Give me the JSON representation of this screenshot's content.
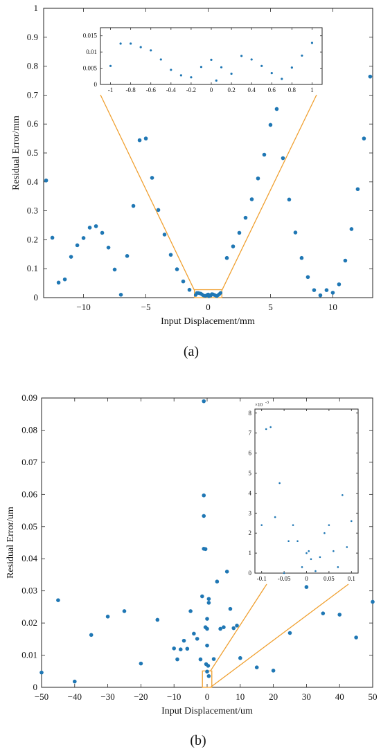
{
  "marker_color": "#1f77b4",
  "zoom_color": "#f0a030",
  "chart_data": [
    {
      "type": "scatter",
      "panel_label": "(a)",
      "xlabel": "Input Displacement/mm",
      "ylabel": "Residual Error/mm",
      "xlim": [
        -13.2,
        13.2
      ],
      "ylim": [
        0,
        1
      ],
      "xticks": [
        -10,
        -5,
        0,
        5,
        10
      ],
      "xtick_labels": [
        "−10",
        "−5",
        "0",
        "5",
        "10"
      ],
      "yticks": [
        0,
        0.1,
        0.2,
        0.3,
        0.4,
        0.5,
        0.6,
        0.7,
        0.8,
        0.9,
        1
      ],
      "ytick_labels": [
        "0",
        "0.1",
        "0.2",
        "0.3",
        "0.4",
        "0.5",
        "0.6",
        "0.7",
        "0.8",
        "0.9",
        "1"
      ],
      "zoom_box": {
        "x": [
          -1.1,
          1.1
        ],
        "y": [
          0,
          0.025
        ]
      },
      "points": [
        [
          -13,
          0.405
        ],
        [
          -12.5,
          0.207
        ],
        [
          -12,
          0.052
        ],
        [
          -11.5,
          0.063
        ],
        [
          -11,
          0.141
        ],
        [
          -10.5,
          0.181
        ],
        [
          -10,
          0.206
        ],
        [
          -9.5,
          0.242
        ],
        [
          -9,
          0.247
        ],
        [
          -8.5,
          0.224
        ],
        [
          -8,
          0.173
        ],
        [
          -7.5,
          0.097
        ],
        [
          -7,
          0.01
        ],
        [
          -6.5,
          0.144
        ],
        [
          -6,
          0.317
        ],
        [
          -5.5,
          0.544
        ],
        [
          -5,
          0.55
        ],
        [
          -4.5,
          0.414
        ],
        [
          -4,
          0.303
        ],
        [
          -3.5,
          0.218
        ],
        [
          -3,
          0.148
        ],
        [
          -2.5,
          0.098
        ],
        [
          -2,
          0.056
        ],
        [
          -1.5,
          0.027
        ],
        [
          1.5,
          0.137
        ],
        [
          2,
          0.177
        ],
        [
          2.5,
          0.224
        ],
        [
          3,
          0.276
        ],
        [
          3.5,
          0.34
        ],
        [
          4,
          0.412
        ],
        [
          4.5,
          0.494
        ],
        [
          5,
          0.597
        ],
        [
          5.5,
          0.652
        ],
        [
          6,
          0.482
        ],
        [
          6.5,
          0.339
        ],
        [
          7,
          0.225
        ],
        [
          7.5,
          0.137
        ],
        [
          8,
          0.071
        ],
        [
          8.5,
          0.026
        ],
        [
          9,
          0.008
        ],
        [
          9.5,
          0.026
        ],
        [
          10,
          0.017
        ],
        [
          10.5,
          0.046
        ],
        [
          11,
          0.128
        ],
        [
          11.5,
          0.237
        ],
        [
          12,
          0.375
        ],
        [
          12.5,
          0.55
        ],
        [
          13,
          0.764
        ]
      ],
      "inset": {
        "xlim": [
          -1.1,
          1.1
        ],
        "ylim": [
          0,
          0.0175
        ],
        "xticks": [
          -1,
          -0.8,
          -0.6,
          -0.4,
          -0.2,
          0,
          0.2,
          0.4,
          0.6,
          0.8,
          1
        ],
        "xtick_labels": [
          "-1",
          "-0.8",
          "-0.6",
          "-0.4",
          "-0.2",
          "0",
          "0.2",
          "0.4",
          "0.6",
          "0.8",
          "1"
        ],
        "yticks": [
          0,
          0.005,
          0.01,
          0.015
        ],
        "ytick_labels": [
          "0",
          "0.005",
          "0.01",
          "0.015"
        ],
        "points": [
          [
            -1,
            0.0057
          ],
          [
            -0.9,
            0.0126
          ],
          [
            -0.8,
            0.0126
          ],
          [
            -0.7,
            0.0115
          ],
          [
            -0.6,
            0.0105
          ],
          [
            -0.5,
            0.0077
          ],
          [
            -0.4,
            0.0045
          ],
          [
            -0.3,
            0.0028
          ],
          [
            -0.2,
            0.0022
          ],
          [
            -0.1,
            0.0054
          ],
          [
            0,
            0.0076
          ],
          [
            0.05,
            0.0012
          ],
          [
            0.1,
            0.0053
          ],
          [
            0.2,
            0.0033
          ],
          [
            0.3,
            0.0088
          ],
          [
            0.4,
            0.0077
          ],
          [
            0.5,
            0.0057
          ],
          [
            0.6,
            0.0035
          ],
          [
            0.7,
            0.0017
          ],
          [
            0.8,
            0.0052
          ],
          [
            0.9,
            0.0089
          ],
          [
            1,
            0.0128
          ]
        ]
      }
    },
    {
      "type": "scatter",
      "panel_label": "(b)",
      "xlabel": "Input Displacement/um",
      "ylabel": "Residual Error/um",
      "xlim": [
        -50,
        50
      ],
      "ylim": [
        0,
        0.09
      ],
      "xticks": [
        -50,
        -40,
        -30,
        -20,
        -10,
        0,
        10,
        20,
        30,
        40,
        50
      ],
      "xtick_labels": [
        "−50",
        "−40",
        "−30",
        "−20",
        "−10",
        "0",
        "10",
        "20",
        "30",
        "40",
        "50"
      ],
      "yticks": [
        0,
        0.01,
        0.02,
        0.03,
        0.04,
        0.05,
        0.06,
        0.07,
        0.08,
        0.09
      ],
      "ytick_labels": [
        "0",
        "0.01",
        "0.02",
        "0.03",
        "0.04",
        "0.05",
        "0.06",
        "0.07",
        "0.08",
        "0.09"
      ],
      "zoom_box": {
        "x": [
          -1,
          1
        ],
        "y": [
          0,
          0.0038
        ]
      },
      "points": [
        [
          -50,
          0.0046
        ],
        [
          -45,
          0.0271
        ],
        [
          -40,
          0.0018
        ],
        [
          -35,
          0.0163
        ],
        [
          -30,
          0.022
        ],
        [
          -25,
          0.0237
        ],
        [
          -20,
          0.0074
        ],
        [
          -15,
          0.021
        ],
        [
          -10,
          0.0121
        ],
        [
          -9,
          0.0087
        ],
        [
          -8,
          0.0118
        ],
        [
          -7,
          0.0145
        ],
        [
          -6,
          0.012
        ],
        [
          -5,
          0.0237
        ],
        [
          -4,
          0.0167
        ],
        [
          -3,
          0.0151
        ],
        [
          -2,
          0.0087
        ],
        [
          -1.5,
          0.0283
        ],
        [
          -1,
          0.089
        ],
        [
          -1,
          0.0597
        ],
        [
          -1,
          0.0533
        ],
        [
          -1,
          0.0431
        ],
        [
          -0.5,
          0.043
        ],
        [
          -0.5,
          0.0187
        ],
        [
          0,
          0.0213
        ],
        [
          0,
          0.0182
        ],
        [
          0,
          0.013
        ],
        [
          0.5,
          0.0263
        ],
        [
          0.5,
          0.0275
        ],
        [
          -0.3,
          0.0072
        ],
        [
          0.3,
          0.0067
        ],
        [
          0,
          0.0049
        ],
        [
          0.5,
          0.0035
        ],
        [
          2,
          0.0088
        ],
        [
          3,
          0.0329
        ],
        [
          4,
          0.0182
        ],
        [
          5,
          0.0187
        ],
        [
          6,
          0.036
        ],
        [
          7,
          0.0244
        ],
        [
          8,
          0.0184
        ],
        [
          9,
          0.0192
        ],
        [
          10,
          0.0091
        ],
        [
          15,
          0.0062
        ],
        [
          20,
          0.0052
        ],
        [
          25,
          0.0169
        ],
        [
          30,
          0.0312
        ],
        [
          35,
          0.023
        ],
        [
          40,
          0.0226
        ],
        [
          45,
          0.0155
        ],
        [
          50,
          0.0266
        ]
      ],
      "inset": {
        "exponent_label": "×10",
        "exponent_value": "-3",
        "xlim": [
          -0.115,
          0.115
        ],
        "ylim": [
          0,
          0.0082
        ],
        "xticks": [
          -0.1,
          -0.05,
          0,
          0.05,
          0.1
        ],
        "xtick_labels": [
          "-0.1",
          "-0.05",
          "0",
          "0.05",
          "0.1"
        ],
        "yticks": [
          0,
          0.001,
          0.002,
          0.003,
          0.004,
          0.005,
          0.006,
          0.007,
          0.008
        ],
        "ytick_labels": [
          "0",
          "1",
          "2",
          "3",
          "4",
          "5",
          "6",
          "7",
          "8"
        ],
        "points": [
          [
            -0.1,
            0.0024
          ],
          [
            -0.09,
            0.0072
          ],
          [
            -0.08,
            0.0073
          ],
          [
            -0.07,
            0.0028
          ],
          [
            -0.06,
            0.0045
          ],
          [
            -0.05,
            0.0
          ],
          [
            -0.04,
            0.0016
          ],
          [
            -0.03,
            0.0024
          ],
          [
            -0.02,
            0.0016
          ],
          [
            -0.01,
            0.0003
          ],
          [
            0,
            0.001
          ],
          [
            0.005,
            0.0011
          ],
          [
            0.01,
            0.0007
          ],
          [
            0.02,
            0.0001
          ],
          [
            0.03,
            0.0008
          ],
          [
            0.04,
            0.002
          ],
          [
            0.05,
            0.0024
          ],
          [
            0.06,
            0.0011
          ],
          [
            0.07,
            0.0003
          ],
          [
            0.08,
            0.0039
          ],
          [
            0.09,
            0.0013
          ],
          [
            0.1,
            0.0026
          ]
        ]
      }
    }
  ]
}
